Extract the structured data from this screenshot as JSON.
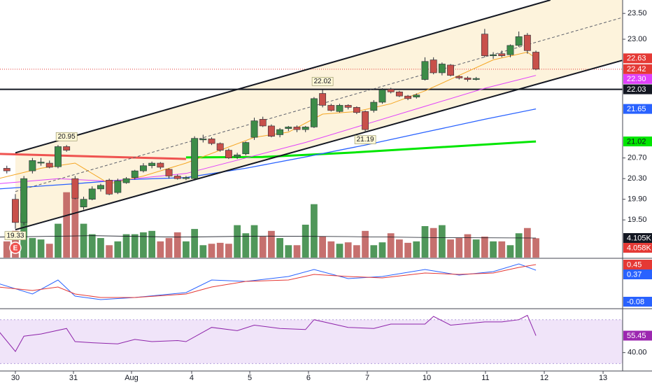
{
  "chart_data": {
    "type": "candlestick",
    "up_color": "#3d8c48",
    "down_color": "#c8504a",
    "xlim": [
      -0.8,
      72.16
    ],
    "xticks": [
      {
        "value": 1.0,
        "label": "30"
      },
      {
        "value": 7.81,
        "label": "31"
      },
      {
        "value": 14.61,
        "label": "Aug"
      },
      {
        "value": 21.66,
        "label": "4"
      },
      {
        "value": 28.47,
        "label": "5"
      },
      {
        "value": 35.35,
        "label": "6"
      },
      {
        "value": 42.24,
        "label": "7"
      },
      {
        "value": 49.21,
        "label": "10"
      },
      {
        "value": 56.09,
        "label": "11"
      },
      {
        "value": 62.98,
        "label": "12"
      },
      {
        "value": 69.87,
        "label": "13"
      }
    ],
    "ylim": [
      18.77,
      23.76
    ],
    "yticks": [
      {
        "value": 23.5,
        "label": "23.50"
      },
      {
        "value": 23,
        "label": "23.00"
      },
      {
        "value": 20.7,
        "label": "20.70"
      },
      {
        "value": 20.3,
        "label": "20.30"
      },
      {
        "value": 19.9,
        "label": "19.90"
      },
      {
        "value": 19.5,
        "label": "19.50"
      }
    ],
    "open": [
      20.5,
      19.9,
      19.45,
      20.45,
      20.6,
      20.6,
      20.53,
      20.92,
      20.3,
      19.75,
      19.9,
      20.1,
      20.27,
      20.03,
      20.22,
      20.32,
      20.45,
      20.55,
      20.6,
      20.48,
      20.35,
      20.3,
      20.3,
      21.05,
      21.07,
      20.98,
      20.85,
      20.72,
      20.78,
      21.1,
      21.45,
      21.32,
      21.15,
      21.27,
      21.3,
      21.25,
      21.3,
      21.95,
      21.72,
      21.6,
      21.72,
      21.68,
      21.6,
      21.62,
      21.78,
      22.03,
      21.98,
      21.9,
      21.88,
      22.22,
      22.6,
      22.35,
      22.5,
      22.28,
      22.25,
      22.22,
      23.1,
      22.68,
      22.72,
      22.7,
      22.88,
      23.08,
      22.75
    ],
    "high": [
      20.55,
      20.0,
      20.35,
      20.7,
      20.7,
      20.65,
      20.95,
      20.95,
      20.35,
      19.95,
      20.15,
      20.2,
      20.3,
      20.3,
      20.33,
      20.47,
      20.6,
      20.63,
      20.62,
      20.5,
      20.38,
      20.35,
      21.12,
      21.15,
      21.1,
      21.0,
      20.88,
      20.8,
      21.02,
      21.48,
      21.5,
      21.35,
      21.28,
      21.32,
      21.33,
      21.32,
      21.88,
      22.02,
      21.75,
      21.75,
      21.74,
      21.7,
      21.62,
      21.82,
      22.05,
      22.06,
      22.0,
      21.92,
      21.95,
      22.65,
      22.65,
      22.55,
      22.52,
      22.3,
      22.28,
      22.27,
      23.2,
      22.75,
      22.78,
      22.9,
      23.15,
      23.12,
      22.78
    ],
    "low": [
      20.4,
      19.33,
      19.4,
      20.4,
      20.55,
      20.5,
      20.5,
      20.82,
      19.9,
      19.7,
      19.88,
      20.05,
      19.98,
      20.0,
      20.2,
      20.28,
      20.42,
      20.5,
      20.48,
      20.3,
      20.28,
      20.27,
      20.28,
      21.0,
      20.95,
      20.82,
      20.68,
      20.68,
      20.75,
      21.05,
      21.3,
      21.1,
      21.1,
      21.22,
      21.2,
      21.2,
      21.28,
      21.68,
      21.6,
      21.58,
      21.64,
      21.55,
      21.19,
      21.58,
      21.75,
      21.95,
      21.88,
      21.82,
      21.85,
      22.2,
      22.32,
      22.3,
      22.28,
      22.22,
      22.18,
      22.2,
      22.65,
      22.62,
      22.65,
      22.65,
      22.85,
      22.72,
      22.4
    ],
    "close": [
      20.45,
      19.45,
      20.3,
      20.65,
      20.62,
      20.52,
      20.92,
      20.85,
      19.92,
      19.9,
      20.1,
      20.17,
      20.0,
      20.26,
      20.3,
      20.45,
      20.55,
      20.6,
      20.52,
      20.35,
      20.3,
      20.32,
      21.08,
      21.07,
      20.98,
      20.85,
      20.7,
      20.76,
      21.0,
      21.42,
      21.32,
      21.12,
      21.25,
      21.3,
      21.25,
      21.3,
      21.85,
      21.72,
      21.62,
      21.72,
      21.68,
      21.58,
      21.25,
      21.78,
      22.02,
      21.98,
      21.9,
      21.85,
      21.92,
      22.57,
      22.35,
      22.52,
      22.3,
      22.25,
      22.22,
      22.24,
      22.68,
      22.7,
      22.68,
      22.88,
      23.05,
      22.78,
      22.42
    ],
    "moving_averages": [
      {
        "color": "#ef5350",
        "width": 3,
        "x": [
          -1,
          21
        ],
        "values": [
          20.78,
          20.68
        ]
      },
      {
        "color": "#00e600",
        "width": 3,
        "x": [
          21,
          30,
          40,
          50,
          62
        ],
        "values": [
          20.71,
          20.72,
          20.8,
          20.9,
          21.02
        ]
      },
      {
        "color": "#2962ff",
        "width": 1.3,
        "x": [
          -1,
          8,
          14,
          21,
          28,
          35,
          42,
          49,
          56,
          62
        ],
        "values": [
          20.1,
          20.2,
          20.28,
          20.32,
          20.5,
          20.72,
          20.95,
          21.2,
          21.45,
          21.65
        ]
      },
      {
        "color": "#e040fb",
        "width": 1,
        "x": [
          -1,
          6,
          12,
          21,
          28,
          35,
          42,
          49,
          56,
          62
        ],
        "values": [
          20.2,
          20.3,
          20.25,
          20.4,
          20.7,
          21.0,
          21.35,
          21.7,
          22.05,
          22.3
        ]
      },
      {
        "color": "#f5a623",
        "width": 1,
        "x": [
          -1,
          4,
          8,
          12,
          16,
          21,
          25,
          29,
          33,
          37,
          41,
          45,
          49,
          53,
          57,
          61,
          62
        ],
        "values": [
          20.3,
          20.5,
          20.6,
          20.2,
          20.35,
          20.6,
          20.85,
          21.1,
          21.2,
          21.55,
          21.6,
          21.75,
          22.0,
          22.3,
          22.6,
          22.75,
          22.63
        ]
      }
    ],
    "channel": {
      "fill": "#fdf1d6",
      "lines": [
        {
          "x": [
            1,
            63.7
          ],
          "values": [
            20.8,
            23.76
          ]
        },
        {
          "x": [
            1,
            72.1
          ],
          "values": [
            19.31,
            22.59
          ]
        }
      ],
      "midline": {
        "x": [
          1,
          72.1
        ],
        "values": [
          20.05,
          23.42
        ]
      }
    },
    "horizontal_line": 22.03,
    "last_price_line": {
      "value": 22.42,
      "color": "#e53935"
    },
    "annotations": [
      {
        "x": 1,
        "value": 19.33,
        "label": "19.33"
      },
      {
        "x": 7,
        "value": 20.95,
        "label": "20.95"
      },
      {
        "x": 37,
        "value": 22.02,
        "label": "22.02"
      },
      {
        "x": 42,
        "value": 21.19,
        "label": "21.19"
      }
    ],
    "earnings": {
      "x": 1,
      "label": "E"
    },
    "price_badges": [
      {
        "value": 22.63,
        "label": "22.63",
        "color": "#e53935",
        "text_color": "#ffffff"
      },
      {
        "value": 22.42,
        "label": "22.42",
        "color": "#e53935",
        "text_color": "#ffffff"
      },
      {
        "value": 22.3,
        "label": "22.30",
        "color": "#e040fb",
        "text_color": "#ffffff"
      },
      {
        "value": 22.03,
        "label": "22.03",
        "color": "#131722",
        "text_color": "#ffffff"
      },
      {
        "value": 21.65,
        "label": "21.65",
        "color": "#2962ff",
        "text_color": "#ffffff"
      },
      {
        "value": 21.02,
        "label": "21.02",
        "color": "#00e600",
        "text_color": "#131722"
      }
    ],
    "volume": {
      "ylim": [
        0,
        54000
      ],
      "up_color": "#3d8c48",
      "down_color": "#c0605e",
      "values": [
        3400,
        5600,
        9300,
        4100,
        3800,
        2900,
        7100,
        13700,
        15900,
        7100,
        4900,
        4100,
        2600,
        3400,
        4900,
        4900,
        5300,
        5600,
        3400,
        4100,
        5300,
        3400,
        6000,
        2600,
        2900,
        3100,
        2900,
        6800,
        5100,
        6800,
        4400,
        5600,
        4100,
        2600,
        2600,
        6900,
        11200,
        4400,
        3400,
        2900,
        3200,
        2600,
        5600,
        2600,
        3200,
        5100,
        3800,
        3100,
        3400,
        6600,
        6200,
        6800,
        3800,
        4100,
        4900,
        3800,
        4400,
        3400,
        3400,
        2600,
        5100,
        6200,
        4058
      ],
      "ma": {
        "color": "#131722",
        "x": [
          -1,
          10,
          20,
          30,
          40,
          50,
          62
        ],
        "values": [
          4300,
          4600,
          4300,
          4500,
          4400,
          4200,
          4105
        ]
      },
      "badges": [
        {
          "value": 4105,
          "label": "4.105K",
          "color": "#131722",
          "text_color": "#ffffff"
        },
        {
          "value": 4058,
          "label": "4.058K",
          "color": "#e53935",
          "text_color": "#ffffff"
        }
      ]
    },
    "macd": {
      "ylim": [
        -0.17,
        0.53
      ],
      "series": [
        {
          "color": "#2962ff",
          "x": [
            -1,
            3,
            6,
            8,
            11,
            15,
            21,
            24,
            28,
            33,
            36,
            40,
            44,
            49,
            53,
            57,
            60,
            62
          ],
          "values": [
            0.18,
            0.03,
            0.23,
            0,
            -0.05,
            -0.02,
            0.05,
            0.23,
            0.21,
            0.28,
            0.38,
            0.25,
            0.28,
            0.38,
            0.3,
            0.35,
            0.46,
            0.37
          ]
        },
        {
          "color": "#e53935",
          "x": [
            -1,
            3,
            6,
            8,
            11,
            15,
            21,
            24,
            28,
            33,
            36,
            40,
            44,
            49,
            53,
            57,
            60,
            62
          ],
          "values": [
            0.13,
            0.08,
            0.13,
            0.03,
            -0.02,
            -0.02,
            0.03,
            0.13,
            0.21,
            0.23,
            0.31,
            0.28,
            0.26,
            0.33,
            0.31,
            0.33,
            0.41,
            0.45
          ]
        }
      ],
      "badges": [
        {
          "value": 0.45,
          "label": "0.45",
          "color": "#e53935",
          "text_color": "#ffffff"
        },
        {
          "value": 0.37,
          "label": "0.37",
          "color": "#2962ff",
          "text_color": "#ffffff"
        },
        {
          "value": -0.08,
          "label": "-0.08",
          "color": "#2962ff",
          "text_color": "#ffffff"
        }
      ]
    },
    "rsi": {
      "ylim": [
        23.2,
        79.4
      ],
      "yticks": [
        {
          "value": 40,
          "label": "40.00"
        }
      ],
      "band": [
        30,
        70
      ],
      "band_color": "#e9d8f7",
      "color": "#8e24aa",
      "x": [
        -1,
        1,
        2,
        4,
        7,
        8,
        10,
        13,
        15,
        17,
        20,
        21,
        24,
        27,
        29,
        32,
        35,
        36,
        40,
        43,
        45,
        49,
        50,
        52,
        56,
        58,
        60,
        61,
        62
      ],
      "values": [
        60,
        41,
        55,
        57,
        62,
        50,
        49,
        48,
        52,
        50,
        51,
        50,
        63,
        60,
        65,
        62,
        61,
        70,
        63,
        62,
        66,
        66,
        73,
        65,
        68,
        68,
        70,
        74,
        55.45
      ],
      "badges": [
        {
          "value": 55.45,
          "label": "55.45",
          "color": "#9c27b0",
          "text_color": "#ffffff"
        }
      ]
    }
  }
}
